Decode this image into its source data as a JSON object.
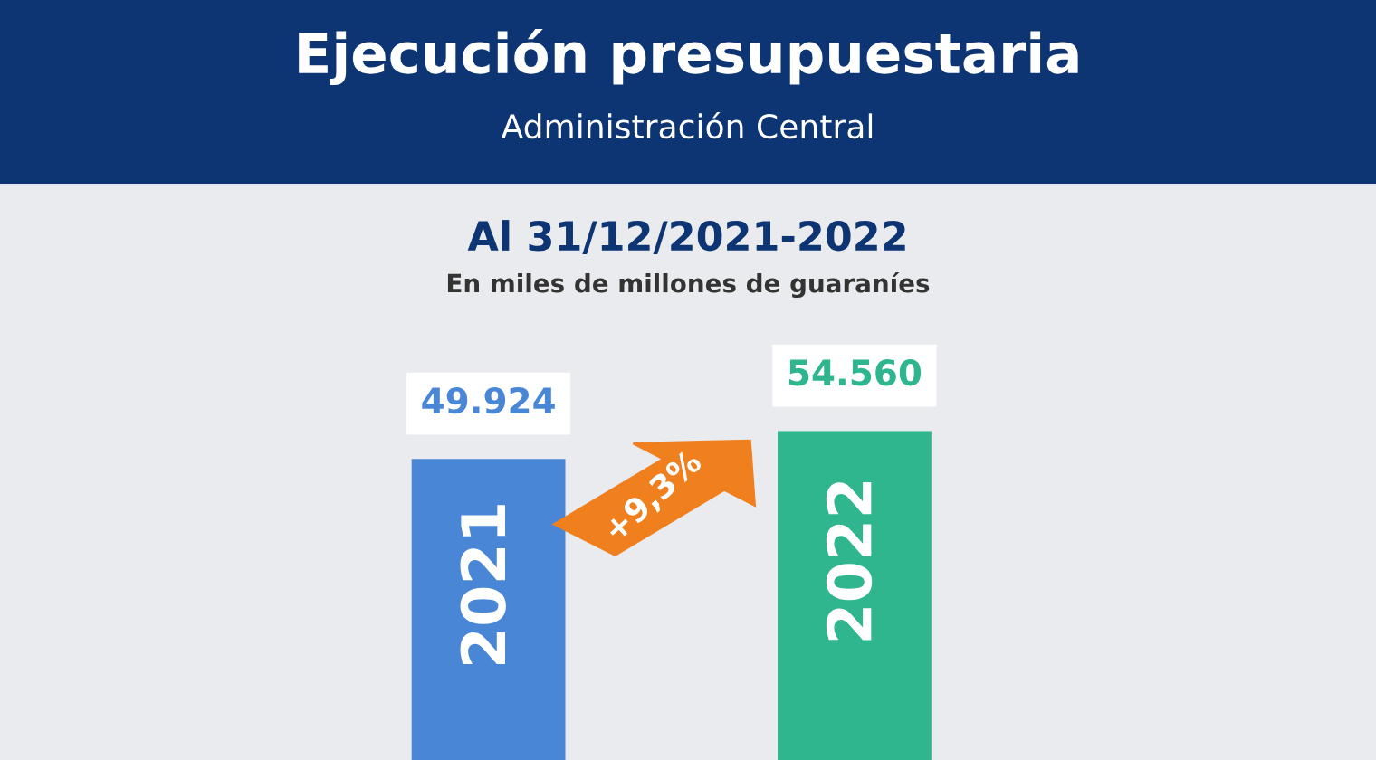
{
  "chart_data": {
    "type": "bar",
    "title": "Ejecución presupuestaria",
    "subtitle": "Administración Central",
    "categories": [
      "2021",
      "2022"
    ],
    "values": [
      49924,
      54560
    ],
    "colors": [
      "#4a86d6",
      "#2fb68e"
    ],
    "value_labels": [
      "49.924",
      "54.560"
    ],
    "annotations": [
      "Al 31/12/2021-2022",
      "En miles de millones de guaraníes",
      "+9,3%"
    ]
  }
}
